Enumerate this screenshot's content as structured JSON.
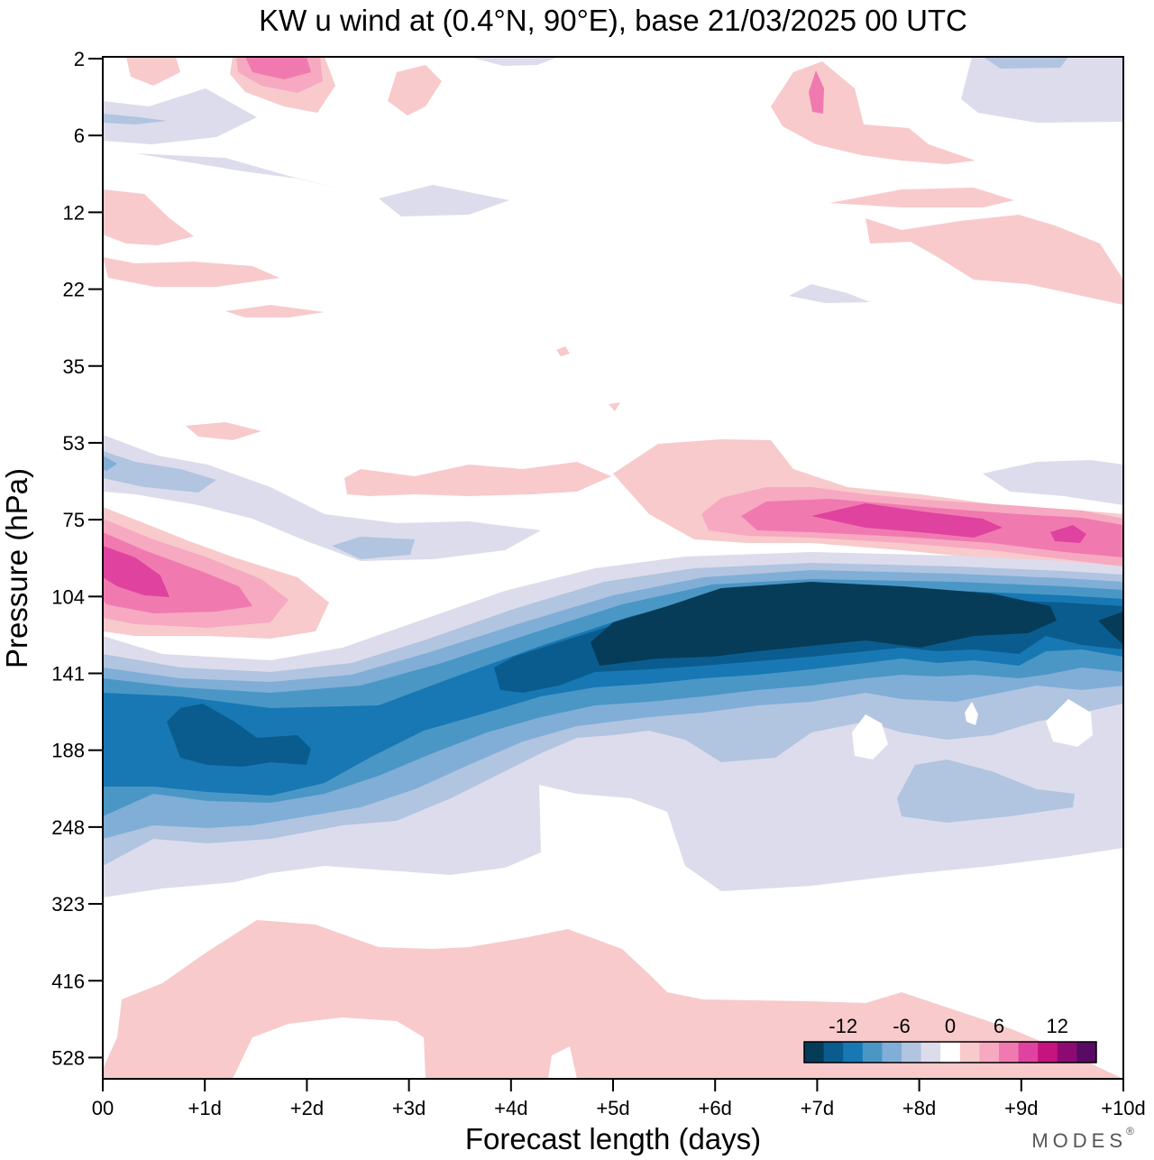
{
  "title": "KW u wind at (0.4°N, 90°E),  base 21/03/2025  00 UTC",
  "brand": "MODES",
  "brand_mark": "®",
  "chart_data": {
    "type": "heatmap",
    "title": "KW u wind at (0.4°N, 90°E),  base 21/03/2025  00 UTC",
    "xlabel": "Forecast length (days)",
    "ylabel": "Pressure (hPa)",
    "x_ticks": [
      "00",
      "+1d",
      "+2d",
      "+3d",
      "+4d",
      "+5d",
      "+6d",
      "+7d",
      "+8d",
      "+9d",
      "+10d"
    ],
    "y_ticks": [
      "2",
      "6",
      "12",
      "22",
      "35",
      "53",
      "75",
      "104",
      "141",
      "188",
      "248",
      "323",
      "416",
      "528"
    ],
    "xlim": [
      0,
      10
    ],
    "y_scale": "log",
    "colorbar": {
      "tick_labels": [
        "-12",
        "-6",
        "0",
        "6",
        "12"
      ],
      "levels": [
        -14,
        -12,
        -10,
        -8,
        -6,
        -4,
        -2,
        2,
        4,
        6,
        8,
        10,
        12,
        14
      ],
      "colors": [
        "#063c58",
        "#0b5c8e",
        "#1778b4",
        "#4a97c6",
        "#80aed7",
        "#b1c4e0",
        "#dcdcec",
        "#ffffff",
        "#f8cacc",
        "#f6a9c0",
        "#f07ab0",
        "#e0429f",
        "#c6137f",
        "#8e0a73",
        "#580a64"
      ]
    },
    "features": [
      {
        "name": "lower-stratosphere easterly core",
        "level_class": "<-14",
        "x_range": [
          5.0,
          10.0
        ],
        "p_range": [
          97,
          135
        ]
      },
      {
        "name": "upper-troposphere easterly core",
        "level_class": "-12 to -10",
        "x_range": [
          0.6,
          2.0
        ],
        "p_range": [
          150,
          205
        ]
      },
      {
        "name": "westerly band near 75 hPa",
        "level_class": "8 to 10",
        "x_range": [
          7.0,
          8.5
        ],
        "p_range": [
          68,
          82
        ]
      },
      {
        "name": "westerly maximum near 104 hPa",
        "level_class": "8 to 10",
        "x_range": [
          0.0,
          0.7
        ],
        "p_range": [
          88,
          115
        ]
      },
      {
        "name": "near-surface westerlies",
        "level_class": "2 to 4",
        "x_range": [
          0.2,
          10.0
        ],
        "p_range": [
          390,
          600
        ]
      }
    ]
  }
}
